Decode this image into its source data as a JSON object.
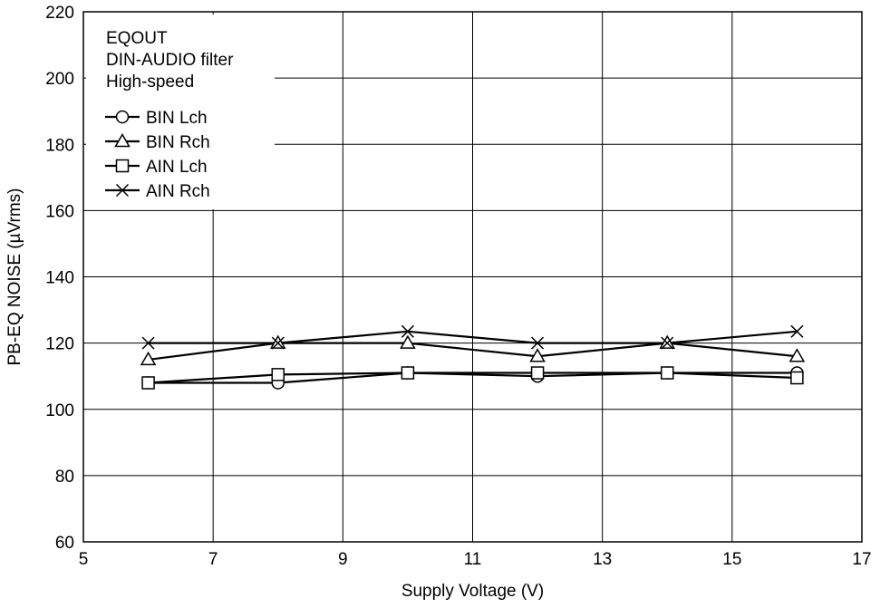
{
  "chart_data": {
    "type": "line",
    "title": "",
    "xlabel": "Supply Voltage  (V)",
    "ylabel": "PB-EQ NOISE  (µVrms)",
    "xlim": [
      5,
      17
    ],
    "ylim": [
      60,
      220
    ],
    "xticks": [
      "5",
      "7",
      "9",
      "11",
      "13",
      "15",
      "17"
    ],
    "yticks": [
      "60",
      "80",
      "100",
      "120",
      "140",
      "160",
      "180",
      "200",
      "220"
    ],
    "grid": true,
    "legend_position": "top-left",
    "legend_header": [
      "EQOUT",
      "DIN-AUDIO filter",
      "High-speed"
    ],
    "x": [
      6,
      8,
      10,
      12,
      14,
      16
    ],
    "series": [
      {
        "name": "BIN Lch",
        "marker": "circle",
        "values": [
          108,
          108,
          111,
          110,
          111,
          111
        ]
      },
      {
        "name": "BIN Rch",
        "marker": "triangle",
        "values": [
          115,
          120,
          120,
          116,
          120,
          116
        ]
      },
      {
        "name": "AIN Lch",
        "marker": "square",
        "values": [
          108,
          110.5,
          111,
          111,
          111,
          109.5
        ]
      },
      {
        "name": "AIN Rch",
        "marker": "cross",
        "values": [
          120,
          120,
          123.5,
          120,
          120,
          123.5
        ]
      }
    ],
    "colors": {
      "line": "#000000",
      "marker_fill": "#ffffff",
      "grid": "#000000"
    }
  }
}
